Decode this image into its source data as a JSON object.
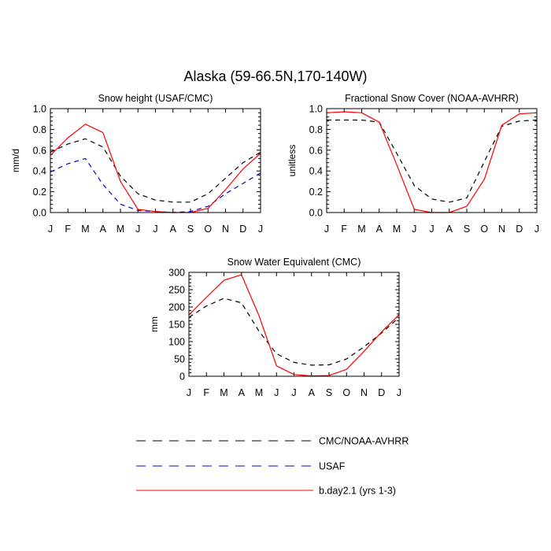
{
  "page": {
    "title": "Alaska (59-66.5N,170-140W)"
  },
  "chart_data": [
    {
      "type": "line",
      "title": "Snow height (USAF/CMC)",
      "ylabel": "mm/d",
      "xlabel": "",
      "categories": [
        "J",
        "F",
        "M",
        "A",
        "M",
        "J",
        "J",
        "A",
        "S",
        "O",
        "N",
        "D",
        "J"
      ],
      "ylim": [
        0,
        1.0
      ],
      "yticks": [
        0.0,
        0.2,
        0.4,
        0.6,
        0.8,
        1.0
      ],
      "ytick_labels": [
        "0.0",
        "0.2",
        "0.4",
        "0.6",
        "0.8",
        "1.0"
      ],
      "grid": false,
      "series": [
        {
          "name": "CMC/NOAA-AVHRR",
          "color": "#000000",
          "dash": "dashed",
          "values": [
            0.58,
            0.66,
            0.71,
            0.63,
            0.35,
            0.18,
            0.12,
            0.1,
            0.1,
            0.18,
            0.33,
            0.48,
            0.58
          ]
        },
        {
          "name": "USAF",
          "color": "#0000cc",
          "dash": "dashed",
          "values": [
            0.39,
            0.47,
            0.52,
            0.27,
            0.08,
            0.02,
            0.01,
            0.0,
            0.01,
            0.06,
            0.18,
            0.28,
            0.38
          ]
        },
        {
          "name": "b.day2.1 (yrs 1-3)",
          "color": "#ff0000",
          "dash": "solid",
          "values": [
            0.55,
            0.72,
            0.85,
            0.77,
            0.3,
            0.03,
            0.01,
            0.0,
            0.0,
            0.04,
            0.22,
            0.42,
            0.57
          ]
        }
      ]
    },
    {
      "type": "line",
      "title": "Fractional Snow Cover (NOAA-AVHRR)",
      "ylabel": "unitless",
      "xlabel": "",
      "categories": [
        "J",
        "F",
        "M",
        "A",
        "M",
        "J",
        "J",
        "A",
        "S",
        "O",
        "N",
        "D",
        "J"
      ],
      "ylim": [
        0,
        1.0
      ],
      "yticks": [
        0.0,
        0.2,
        0.4,
        0.6,
        0.8,
        1.0
      ],
      "ytick_labels": [
        "0.0",
        "0.2",
        "0.4",
        "0.6",
        "0.8",
        "1.0"
      ],
      "grid": false,
      "series": [
        {
          "name": "CMC/NOAA-AVHRR",
          "color": "#000000",
          "dash": "dashed",
          "values": [
            0.89,
            0.89,
            0.89,
            0.87,
            0.57,
            0.26,
            0.13,
            0.1,
            0.14,
            0.49,
            0.83,
            0.88,
            0.89
          ]
        },
        {
          "name": "b.day2.1 (yrs 1-3)",
          "color": "#ff0000",
          "dash": "solid",
          "values": [
            0.96,
            0.97,
            0.96,
            0.87,
            0.46,
            0.03,
            0.0,
            0.0,
            0.06,
            0.32,
            0.84,
            0.95,
            0.96
          ]
        }
      ]
    },
    {
      "type": "line",
      "title": "Snow Water Equivalent (CMC)",
      "ylabel": "mm",
      "xlabel": "",
      "categories": [
        "J",
        "F",
        "M",
        "A",
        "M",
        "J",
        "J",
        "A",
        "S",
        "O",
        "N",
        "D",
        "J"
      ],
      "ylim": [
        0,
        300
      ],
      "yticks": [
        0,
        50,
        100,
        150,
        200,
        250,
        300
      ],
      "ytick_labels": [
        "0",
        "50",
        "100",
        "150",
        "200",
        "250",
        "300"
      ],
      "grid": false,
      "series": [
        {
          "name": "CMC/NOAA-AVHRR",
          "color": "#000000",
          "dash": "dashed",
          "values": [
            170,
            203,
            225,
            212,
            130,
            65,
            40,
            32,
            33,
            50,
            85,
            125,
            170
          ]
        },
        {
          "name": "b.day2.1 (yrs 1-3)",
          "color": "#ff0000",
          "dash": "solid",
          "values": [
            177,
            228,
            277,
            293,
            175,
            30,
            5,
            1,
            2,
            20,
            72,
            128,
            178
          ]
        }
      ]
    }
  ],
  "legend": {
    "placement": "bottom",
    "items": [
      {
        "label": "CMC/NOAA-AVHRR",
        "color": "#000000",
        "dash": "dashed"
      },
      {
        "label": "USAF",
        "color": "#0000cc",
        "dash": "dashed"
      },
      {
        "label": "b.day2.1 (yrs 1-3)",
        "color": "#ff0000",
        "dash": "solid"
      }
    ]
  }
}
